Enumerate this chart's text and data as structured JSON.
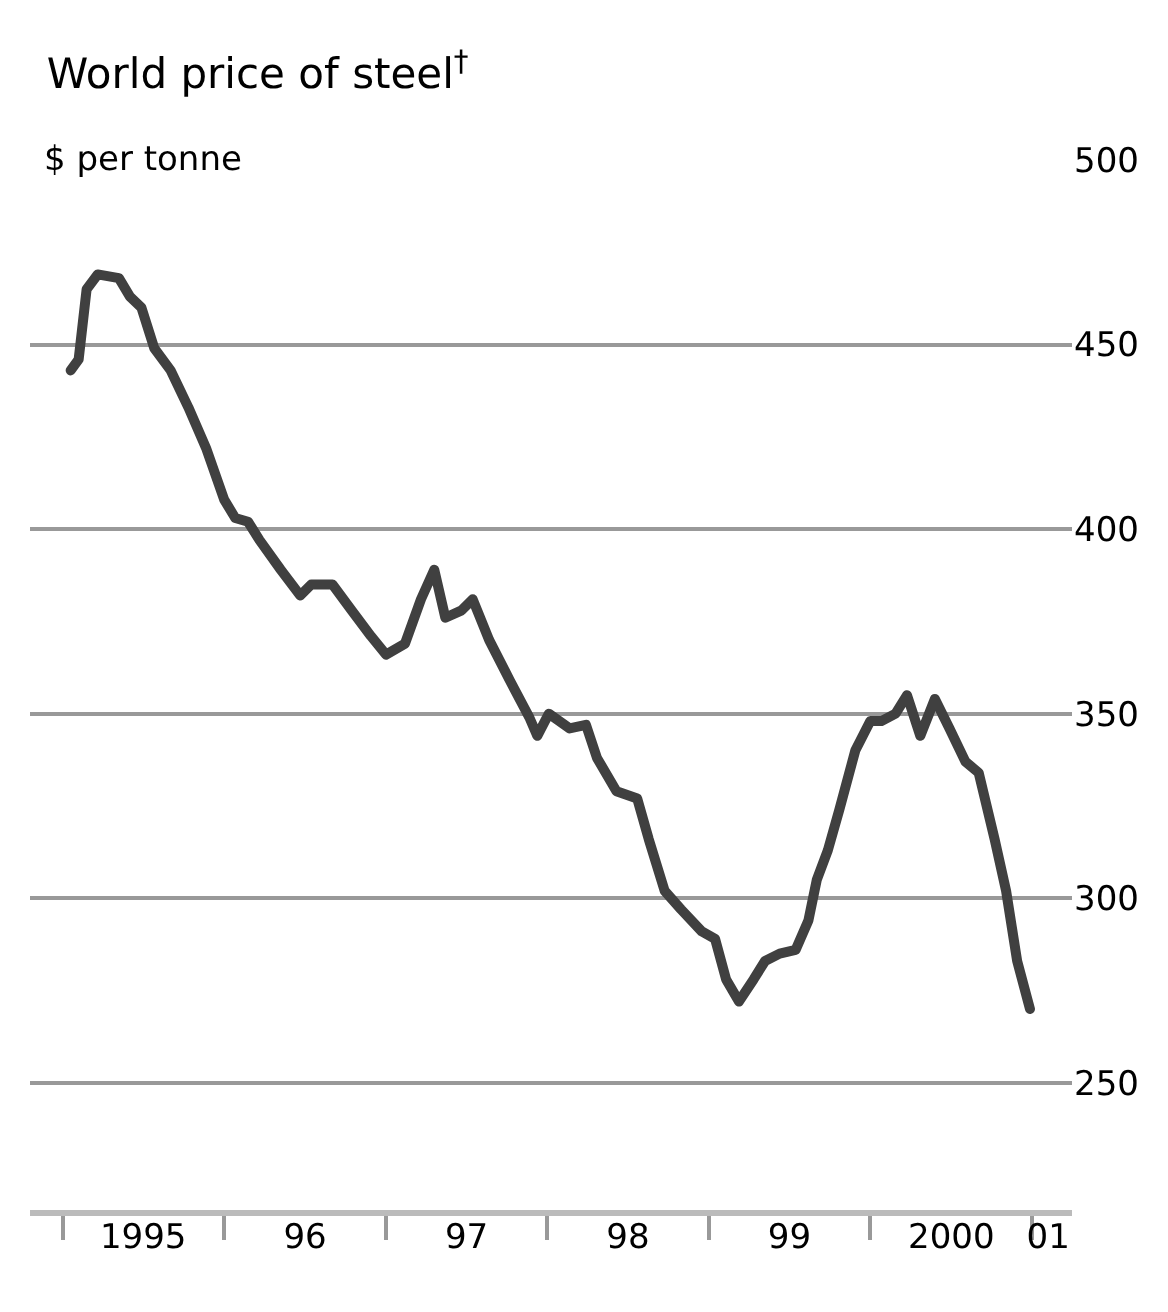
{
  "chart_data": {
    "type": "line",
    "title": "World price of steel$^{†}$",
    "subtitle": "$ per tonne",
    "x": [
      "1995-01-19",
      "1995-02-06",
      "1995-02-24",
      "1995-03-21",
      "1995-05-08",
      "1995-06-02",
      "1995-06-28",
      "1995-07-27",
      "1995-09-02",
      "1995-10-12",
      "1995-11-21",
      "1996-01-01",
      "1996-01-26",
      "1996-02-24",
      "1996-03-21",
      "1996-05-08",
      "1996-06-21",
      "1996-07-16",
      "1996-09-02",
      "1996-10-15",
      "1996-11-28",
      "1997-01-01",
      "1997-02-13",
      "1997-03-21",
      "1997-04-20",
      "1997-05-15",
      "1997-06-21",
      "1997-07-16",
      "1997-08-22",
      "1997-10-08",
      "1997-11-21",
      "1997-12-09",
      "1998-01-04",
      "1998-02-20",
      "1998-03-29",
      "1998-04-23",
      "1998-06-06",
      "1998-07-23",
      "1998-08-18",
      "1998-09-23",
      "1998-10-30",
      "1998-12-16",
      "1999-01-15",
      "1999-02-09",
      "1999-03-10",
      "1999-04-12",
      "1999-05-08",
      "1999-06-10",
      "1999-07-16",
      "1999-08-14",
      "1999-09-02",
      "1999-09-27",
      "1999-10-23",
      "1999-11-28",
      "2000-01-01",
      "2000-01-26",
      "2000-02-27",
      "2000-03-24",
      "2000-04-23",
      "2000-05-26",
      "2000-06-28",
      "2000-08-03",
      "2000-09-02",
      "2000-10-08",
      "2000-11-03",
      "2000-11-28",
      "2000-12-27"
    ],
    "series": [
      {
        "color": "#404040",
        "values": [
          443,
          446,
          465,
          469,
          468,
          463,
          460,
          449,
          443,
          433,
          422,
          408,
          403,
          402,
          397,
          389,
          382,
          385,
          385,
          378,
          371,
          366,
          369,
          381,
          389,
          376,
          378,
          381,
          370,
          359,
          349,
          344,
          350,
          346,
          347,
          338,
          329,
          327,
          316,
          302,
          297,
          291,
          289,
          278,
          272,
          278,
          283,
          285,
          286,
          294,
          305,
          313,
          324,
          340,
          348,
          348,
          350,
          355,
          344,
          354,
          346,
          337,
          334,
          316,
          302,
          283,
          270
        ]
      }
    ],
    "xlim": [
      "1994-10-19",
      "2001-04-01"
    ],
    "xticks": [
      {
        "value": "1995-01-01",
        "label": null
      },
      {
        "value": "1995-07-02",
        "label": "1995"
      },
      {
        "value": "1996-01-01",
        "label": null
      },
      {
        "value": "1996-07-02",
        "label": "96"
      },
      {
        "value": "1997-01-01",
        "label": null
      },
      {
        "value": "1997-07-02",
        "label": "97"
      },
      {
        "value": "1998-01-01",
        "label": null
      },
      {
        "value": "1998-07-02",
        "label": "98"
      },
      {
        "value": "1999-01-01",
        "label": null
      },
      {
        "value": "1999-07-02",
        "label": "99"
      },
      {
        "value": "2000-01-01",
        "label": null
      },
      {
        "value": "2000-07-02",
        "label": "2000"
      },
      {
        "value": "2001-01-01",
        "label": null
      },
      {
        "value": "2001-02-06",
        "label": "01"
      }
    ],
    "ylim": [
      215,
      500
    ],
    "yticks": [
      250,
      300,
      350,
      400,
      450,
      500
    ],
    "grid": "y",
    "line_style": "solid"
  }
}
